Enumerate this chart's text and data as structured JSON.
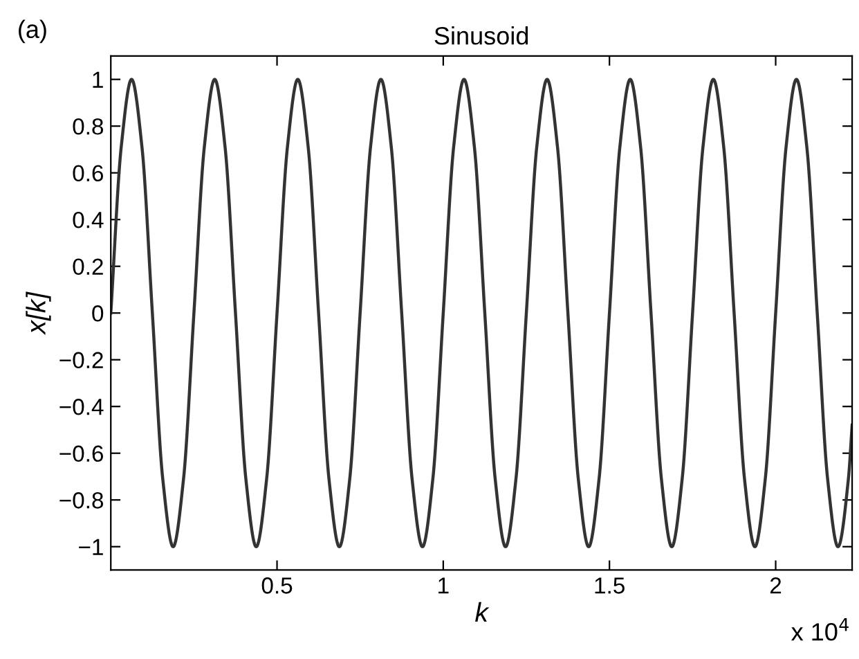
{
  "chart_data": {
    "type": "line",
    "title": "Sinusoid",
    "xlabel": "k",
    "ylabel": "x[k]",
    "annotations": [
      "(a)",
      "x 10$^{4}$"
    ],
    "x": [
      0,
      0.03125,
      0.0625,
      0.09375,
      0.125,
      0.15625,
      0.1875,
      0.21875,
      0.25,
      0.28125,
      0.3125,
      0.34375,
      0.375,
      0.40625,
      0.4375,
      0.46875,
      0.5,
      0.53125,
      0.5625,
      0.59375,
      0.625,
      0.65625,
      0.6875,
      0.71875,
      0.75,
      0.78125,
      0.8125,
      0.84375,
      0.875,
      0.90625,
      0.9375,
      0.96875,
      1,
      1.03125,
      1.0625,
      1.09375,
      1.125,
      1.15625,
      1.1875,
      1.21875,
      1.25,
      1.28125,
      1.3125,
      1.34375,
      1.375,
      1.40625,
      1.4375,
      1.46875,
      1.5,
      1.53125,
      1.5625,
      1.59375,
      1.625,
      1.65625,
      1.6875,
      1.71875,
      1.75,
      1.78125,
      1.8125,
      1.84375,
      1.875,
      1.90625,
      1.9375,
      1.96875,
      2,
      2.03125,
      2.0625,
      2.09375,
      2.125,
      2.15625,
      2.1875,
      2.21875,
      2.23
    ],
    "series": [
      {
        "color": "#333333",
        "values": [
          0,
          0.71,
          1,
          0.71,
          0,
          -0.71,
          -1,
          -0.71,
          0,
          0.71,
          1,
          0.71,
          0,
          -0.71,
          -1,
          -0.71,
          0,
          0.71,
          1,
          0.71,
          0,
          -0.71,
          -1,
          -0.71,
          0,
          0.71,
          1,
          0.71,
          0,
          -0.71,
          -1,
          -0.71,
          0,
          0.71,
          1,
          0.71,
          0,
          -0.71,
          -1,
          -0.71,
          0,
          0.71,
          1,
          0.71,
          0,
          -0.71,
          -1,
          -0.71,
          0,
          0.71,
          1,
          0.71,
          0,
          -0.71,
          -1,
          -0.71,
          0,
          0.71,
          1,
          0.71,
          0,
          -0.71,
          -1,
          -0.71,
          0,
          0.71,
          1,
          0.71,
          0,
          -0.71,
          -1,
          -0.71,
          -0.48
        ]
      }
    ],
    "xlim": [
      0,
      2.23
    ],
    "ylim": [
      -1.1,
      1.1
    ],
    "xticks": [
      0.5,
      1,
      1.5,
      2
    ],
    "yticks": [
      {
        "value": -1,
        "label": "−1"
      },
      {
        "value": -0.8,
        "label": "−0.8"
      },
      {
        "value": -0.6,
        "label": "−0.6"
      },
      {
        "value": -0.4,
        "label": "−0.4"
      },
      {
        "value": -0.2,
        "label": "−0.2"
      },
      0,
      0.2,
      0.4,
      0.6,
      0.8,
      1
    ],
    "grid": false,
    "legend": false,
    "marker": "none",
    "line_style": "solid"
  }
}
